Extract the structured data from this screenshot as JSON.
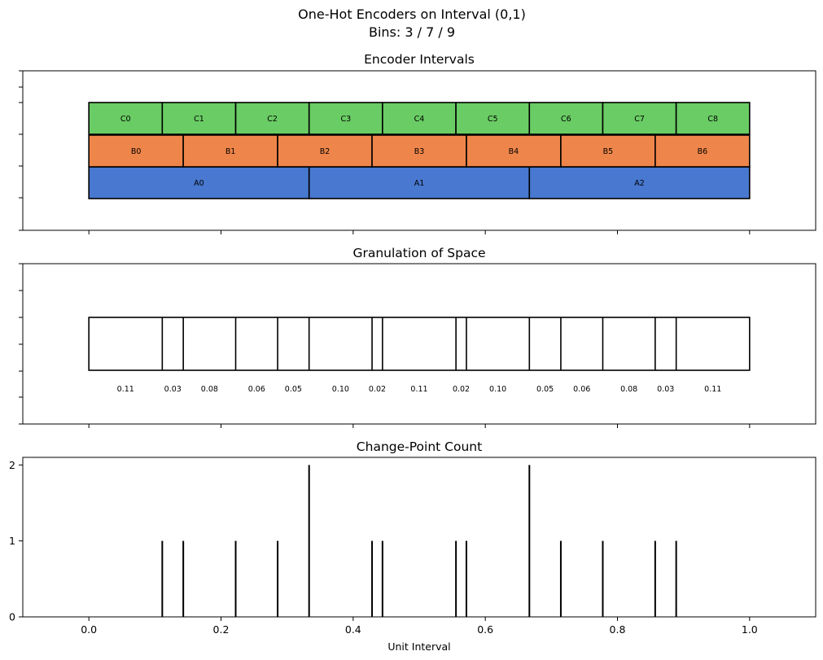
{
  "figure": {
    "title": "One-Hot Encoders on Interval (0,1)",
    "subtitle": "Bins: 3 / 7 / 9"
  },
  "chart_data": [
    {
      "type": "bar",
      "title": "Encoder Intervals",
      "xlim": [
        -0.1,
        1.1
      ],
      "rows": [
        {
          "name": "A",
          "bins": 3,
          "labels": [
            "A0",
            "A1",
            "A2"
          ],
          "color": "#4878cf"
        },
        {
          "name": "B",
          "bins": 7,
          "labels": [
            "B0",
            "B1",
            "B2",
            "B3",
            "B4",
            "B5",
            "B6"
          ],
          "color": "#ee854a"
        },
        {
          "name": "C",
          "bins": 9,
          "labels": [
            "C0",
            "C1",
            "C2",
            "C3",
            "C4",
            "C5",
            "C6",
            "C7",
            "C8"
          ],
          "color": "#6acc64"
        }
      ]
    },
    {
      "type": "bar",
      "title": "Granulation of Space",
      "xlim": [
        -0.1,
        1.1
      ],
      "boundaries": [
        0,
        0.1111,
        0.1429,
        0.2222,
        0.2857,
        0.3333,
        0.4286,
        0.4444,
        0.5556,
        0.5714,
        0.6667,
        0.7143,
        0.7778,
        0.8571,
        0.8889,
        1
      ],
      "width_labels": [
        "0.11",
        "0.03",
        "0.08",
        "0.06",
        "0.05",
        "0.10",
        "0.02",
        "0.11",
        "0.02",
        "0.10",
        "0.05",
        "0.06",
        "0.08",
        "0.03",
        "0.11"
      ]
    },
    {
      "type": "bar",
      "title": "Change-Point Count",
      "xlabel": "Unit Interval",
      "xlim": [
        -0.1,
        1.1
      ],
      "ylim": [
        0,
        2.1
      ],
      "x": [
        0.1111,
        0.1429,
        0.2222,
        0.2857,
        0.3333,
        0.4286,
        0.4444,
        0.5556,
        0.5714,
        0.6667,
        0.7143,
        0.7778,
        0.8571,
        0.8889
      ],
      "values": [
        1,
        1,
        1,
        1,
        2,
        1,
        1,
        1,
        1,
        2,
        1,
        1,
        1,
        1
      ],
      "xticks": [
        "0.0",
        "0.2",
        "0.4",
        "0.6",
        "0.8",
        "1.0"
      ],
      "yticks": [
        "0",
        "1",
        "2"
      ]
    }
  ]
}
